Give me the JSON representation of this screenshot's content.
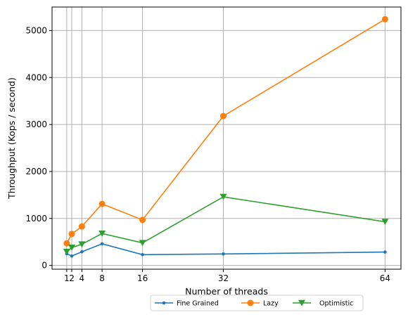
{
  "chart_data": {
    "type": "line",
    "xlabel": "Number of threads",
    "ylabel": "Throughput (Kops / second)",
    "x": [
      1,
      2,
      4,
      8,
      16,
      32,
      64
    ],
    "x_ticks": [
      1,
      2,
      4,
      8,
      16,
      32,
      64
    ],
    "x_tick_labels": [
      "1",
      "2",
      "4",
      "8",
      "16",
      "32",
      "64"
    ],
    "xlim": [
      -1.9,
      67.15
    ],
    "ylim": [
      -80,
      5500
    ],
    "y_ticks": [
      0,
      1000,
      2000,
      3000,
      4000,
      5000
    ],
    "y_tick_labels": [
      "0",
      "1000",
      "2000",
      "3000",
      "4000",
      "5000"
    ],
    "grid": true,
    "legend_position": "bottom-center, outside below plot",
    "series": [
      {
        "name": "Fine Grained",
        "color": "#1f77b4",
        "marker": "point",
        "values": [
          250,
          200,
          290,
          460,
          230,
          245,
          285
        ]
      },
      {
        "name": "Lazy",
        "color": "#ff7f0e",
        "marker": "circle",
        "values": [
          470,
          670,
          830,
          1310,
          970,
          3180,
          5240
        ]
      },
      {
        "name": "Optimistic",
        "color": "#2ca02c",
        "marker": "triangle-down",
        "values": [
          290,
          380,
          450,
          680,
          480,
          1460,
          930
        ]
      }
    ]
  }
}
